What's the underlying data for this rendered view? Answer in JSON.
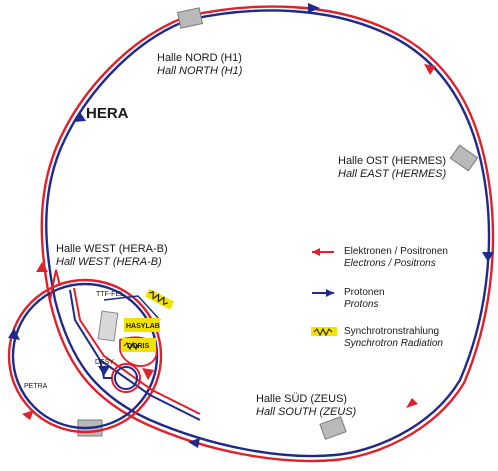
{
  "title": "HERA",
  "halls": {
    "nord": {
      "de": "Halle NORD (H1)",
      "en": "Hall NORTH (H1)"
    },
    "ost": {
      "de": "Halle OST (HERMES)",
      "en": "Hall EAST (HERMES)"
    },
    "west": {
      "de": "Halle WEST (HERA-B)",
      "en": "Hall WEST (HERA-B)"
    },
    "sued": {
      "de": "Halle SÜD (ZEUS)",
      "en": "Hall SOUTH (ZEUS)"
    }
  },
  "legend": {
    "electrons": {
      "de": "Elektronen / Positronen",
      "en": "Electrons / Positrons",
      "color": "#e0202a"
    },
    "protons": {
      "de": "Protonen",
      "en": "Protons",
      "color": "#1f2a8a"
    },
    "synchrotron": {
      "de": "Synchrotronstrahlung",
      "en": "Synchrotron Radiation",
      "color": "#f2e200"
    }
  },
  "facilities": {
    "ttf_fel": "TTF-FEL",
    "hasylab": "HASYLAB",
    "doris": "DORIS",
    "desy": "DESY",
    "petra": "PETRA"
  },
  "colors": {
    "electron_beam": "#e0202a",
    "proton_beam": "#1f2a8a",
    "synchrotron": "#f2e200",
    "hall_block": "#b9b9b9"
  }
}
